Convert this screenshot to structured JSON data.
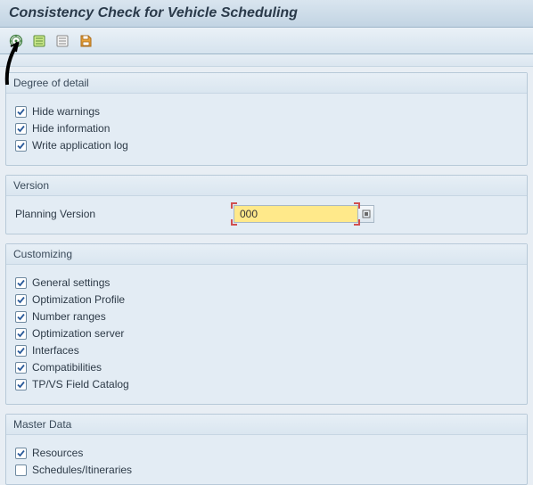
{
  "title": "Consistency Check for Vehicle Scheduling",
  "toolbar": {
    "icons": [
      "execute",
      "variant-get",
      "variant-attrs",
      "save"
    ]
  },
  "groups": {
    "degree": {
      "title": "Degree of detail",
      "items": [
        {
          "label": "Hide warnings",
          "checked": true
        },
        {
          "label": "Hide information",
          "checked": true
        },
        {
          "label": "Write application log",
          "checked": true
        }
      ]
    },
    "version": {
      "title": "Version",
      "field_label": "Planning Version",
      "value": "000"
    },
    "customizing": {
      "title": "Customizing",
      "items": [
        {
          "label": "General settings",
          "checked": true
        },
        {
          "label": "Optimization Profile",
          "checked": true
        },
        {
          "label": "Number ranges",
          "checked": true
        },
        {
          "label": "Optimization server",
          "checked": true
        },
        {
          "label": "Interfaces",
          "checked": true
        },
        {
          "label": "Compatibilities",
          "checked": true
        },
        {
          "label": "TP/VS Field Catalog",
          "checked": true
        }
      ]
    },
    "master": {
      "title": "Master Data",
      "items": [
        {
          "label": "Resources",
          "checked": true
        },
        {
          "label": "Schedules/Itineraries",
          "checked": false
        }
      ]
    }
  }
}
